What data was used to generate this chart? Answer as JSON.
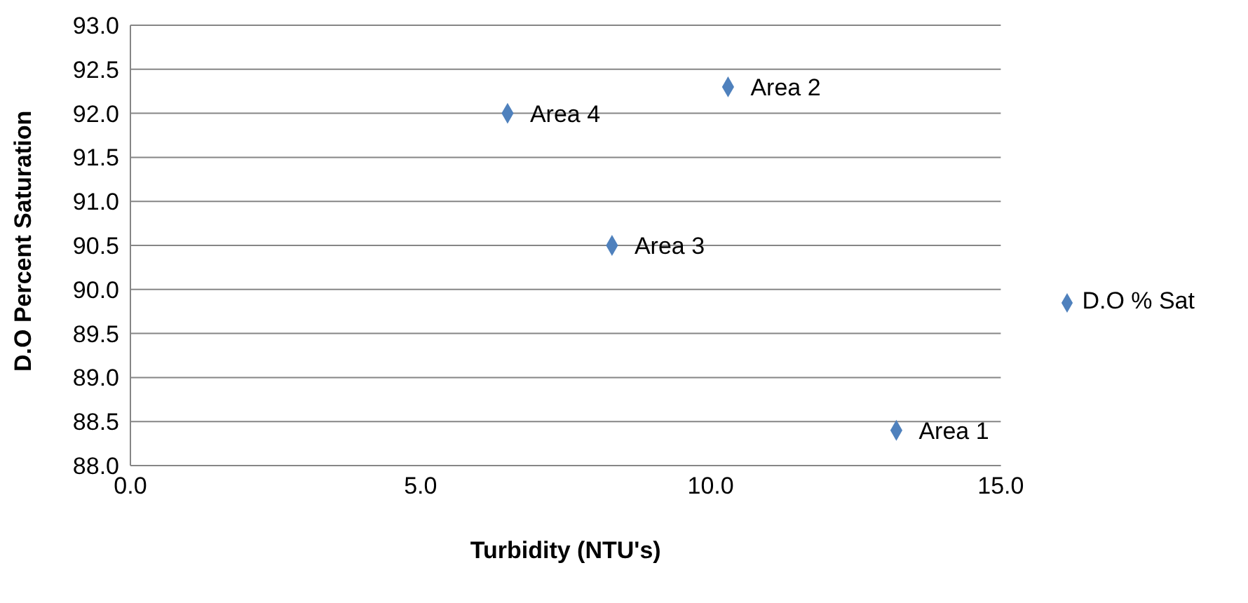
{
  "chart_data": {
    "type": "scatter",
    "xlabel": "Turbidity (NTU's)",
    "ylabel": "D.O Percent Saturation",
    "x": [
      13.2,
      10.3,
      8.3,
      6.5
    ],
    "series": [
      {
        "name": "D.O % Sat",
        "color": "#4f81bd",
        "values": [
          88.4,
          92.3,
          90.5,
          92.0
        ]
      }
    ],
    "annotations": [
      {
        "text": "Area 1",
        "x": 13.2,
        "y": 88.4
      },
      {
        "text": "Area 2",
        "x": 10.3,
        "y": 92.3
      },
      {
        "text": "Area 3",
        "x": 8.3,
        "y": 90.5
      },
      {
        "text": "Area 4",
        "x": 6.5,
        "y": 92.0
      }
    ],
    "xlim": [
      0,
      15
    ],
    "xticks": [
      {
        "value": 0,
        "label": "0.0"
      },
      {
        "value": 5,
        "label": "5.0"
      },
      {
        "value": 10,
        "label": "10.0"
      },
      {
        "value": 15,
        "label": "15.0"
      }
    ],
    "ylim": [
      88,
      93
    ],
    "yticks": [
      {
        "value": 88,
        "label": "88.0"
      },
      {
        "value": 88.5,
        "label": "88.5"
      },
      {
        "value": 89,
        "label": "89.0"
      },
      {
        "value": 89.5,
        "label": "89.5"
      },
      {
        "value": 90,
        "label": "90.0"
      },
      {
        "value": 90.5,
        "label": "90.5"
      },
      {
        "value": 91,
        "label": "91.0"
      },
      {
        "value": 91.5,
        "label": "91.5"
      },
      {
        "value": 92,
        "label": "92.0"
      },
      {
        "value": 92.5,
        "label": "92.5"
      },
      {
        "value": 93,
        "label": "93.0"
      }
    ],
    "grid": "y",
    "legend": "right",
    "marker": "diamond"
  }
}
